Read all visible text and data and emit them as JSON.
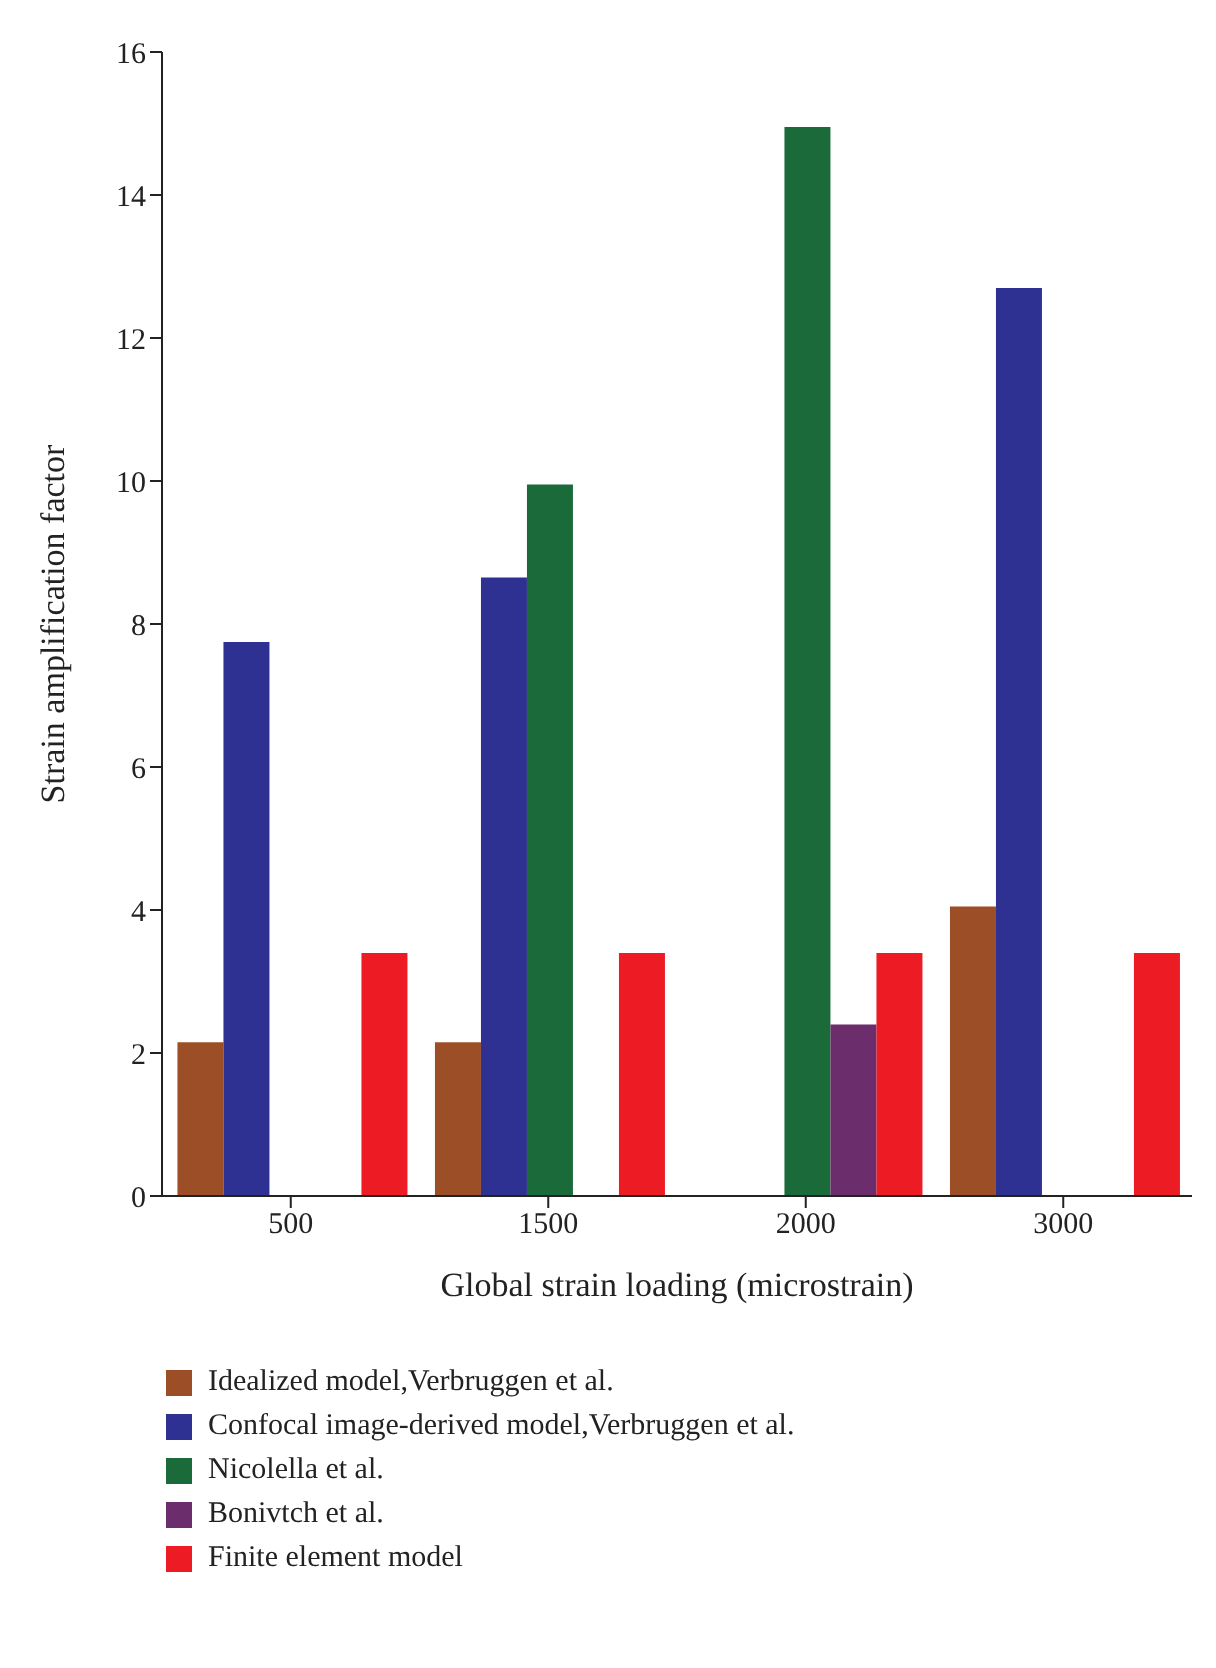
{
  "chart_data": {
    "type": "bar",
    "xlabel": "Global strain loading (microstrain)",
    "ylabel": "Strain amplification factor",
    "categories": [
      "500",
      "1500",
      "2000",
      "3000"
    ],
    "series": [
      {
        "name": "Idealized model,Verbruggen et al.",
        "color": "#9c4f26",
        "values": [
          2.15,
          2.15,
          null,
          4.05
        ]
      },
      {
        "name": "Confocal image-derived model,Verbruggen et al.",
        "color": "#2e3192",
        "values": [
          7.75,
          8.65,
          null,
          12.7
        ]
      },
      {
        "name": "Nicolella et al.",
        "color": "#1b6b3a",
        "values": [
          null,
          9.95,
          14.95,
          null
        ]
      },
      {
        "name": "Bonivtch et al.",
        "color": "#6b2d6b",
        "values": [
          null,
          null,
          2.4,
          null
        ]
      },
      {
        "name": "Finite element model",
        "color": "#ed1c24",
        "values": [
          3.4,
          3.4,
          3.4,
          3.4
        ]
      }
    ],
    "ylim": [
      0,
      16
    ],
    "yticks": [
      0,
      2,
      4,
      6,
      8,
      10,
      12,
      14,
      16
    ],
    "grid": false,
    "legend": "bottom"
  }
}
